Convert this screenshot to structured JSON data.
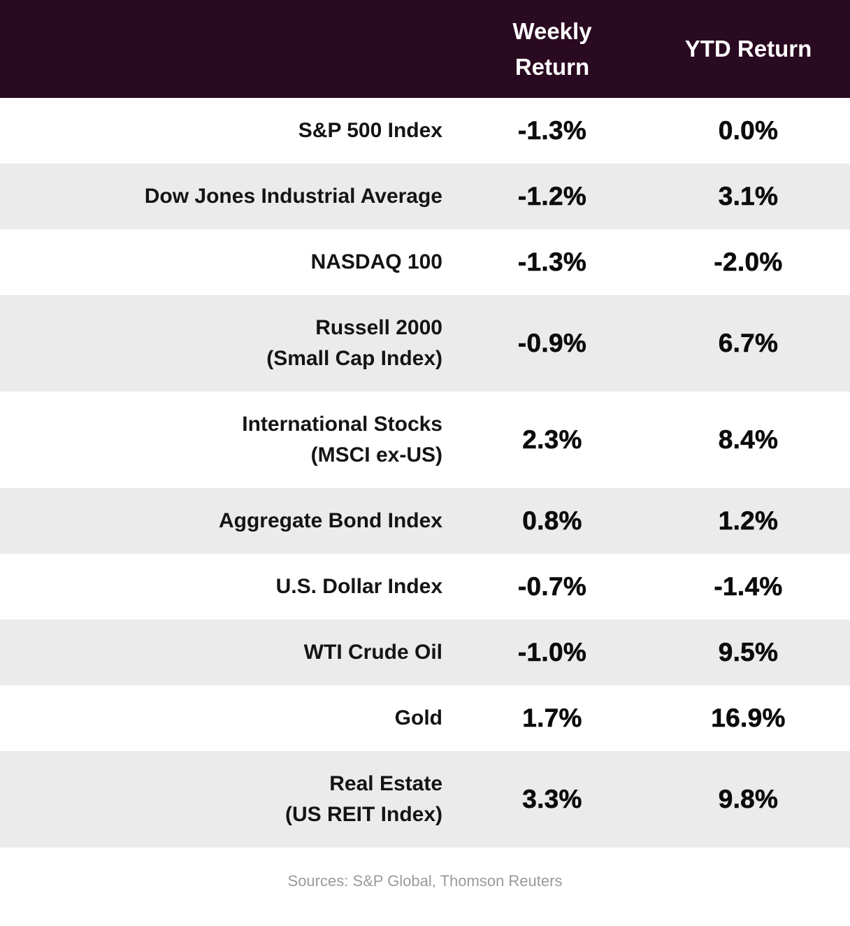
{
  "chart_data": {
    "type": "table",
    "columns": [
      {
        "label": "Weekly Return"
      },
      {
        "label": "YTD Return"
      }
    ],
    "rows": [
      {
        "label": "S&P 500 Index",
        "sublabel": "",
        "weekly_return": "-1.3%",
        "ytd_return": "0.0%"
      },
      {
        "label": "Dow Jones Industrial Average",
        "sublabel": "",
        "weekly_return": "-1.2%",
        "ytd_return": "3.1%"
      },
      {
        "label": "NASDAQ 100",
        "sublabel": "",
        "weekly_return": "-1.3%",
        "ytd_return": "-2.0%"
      },
      {
        "label": "Russell 2000",
        "sublabel": "(Small Cap Index)",
        "weekly_return": "-0.9%",
        "ytd_return": "6.7%"
      },
      {
        "label": "International Stocks",
        "sublabel": "(MSCI ex-US)",
        "weekly_return": "2.3%",
        "ytd_return": "8.4%"
      },
      {
        "label": "Aggregate Bond Index",
        "sublabel": "",
        "weekly_return": "0.8%",
        "ytd_return": "1.2%"
      },
      {
        "label": "U.S. Dollar Index",
        "sublabel": "",
        "weekly_return": "-0.7%",
        "ytd_return": "-1.4%"
      },
      {
        "label": "WTI Crude Oil",
        "sublabel": "",
        "weekly_return": "-1.0%",
        "ytd_return": "9.5%"
      },
      {
        "label": "Gold",
        "sublabel": "",
        "weekly_return": "1.7%",
        "ytd_return": "16.9%"
      },
      {
        "label": "Real Estate",
        "sublabel": "(US REIT Index)",
        "weekly_return": "3.3%",
        "ytd_return": "9.8%"
      }
    ],
    "source": "Sources: S&P Global, Thomson Reuters",
    "layout": {
      "legend": "none",
      "grid": "off",
      "row_striping": "alternating"
    },
    "colors": {
      "header_bg": "#2a0a20",
      "header_text": "#ffffff",
      "row_bg": "#ffffff",
      "row_alt_bg": "#ebebeb",
      "body_text": "#141414",
      "value_text": "#0c0c0c",
      "source_text": "#9a9a9a"
    }
  }
}
